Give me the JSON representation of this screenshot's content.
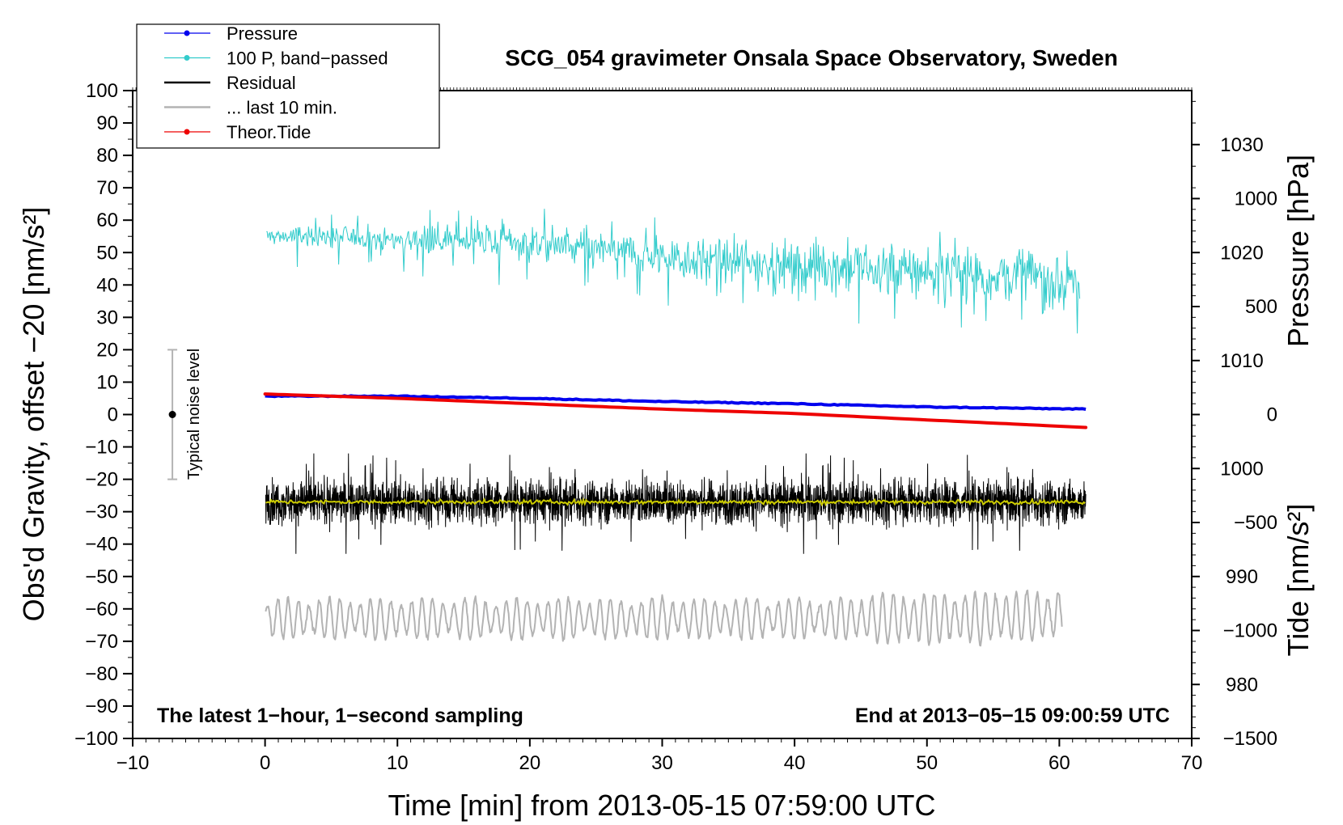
{
  "chart_data": {
    "type": "line",
    "title": "SCG_054 gravimeter Onsala Space Observatory, Sweden",
    "xlabel": "Time [min] from 2013-05-15 07:59:00 UTC",
    "ylabel_left": "Obs'd Gravity, offset −20 [nm/s²]",
    "ylabel_right_top": "Pressure [hPa]",
    "ylabel_right_bottom": "Tide [nm/s²]",
    "xlim": [
      -10,
      70
    ],
    "ylim": [
      -100,
      100
    ],
    "pressure_lim": [
      975,
      1035
    ],
    "tide_lim": [
      -1500,
      1500
    ],
    "x_ticks": [
      -10,
      0,
      10,
      20,
      30,
      40,
      50,
      60,
      70
    ],
    "y_ticks": [
      100,
      90,
      80,
      70,
      60,
      50,
      40,
      30,
      20,
      10,
      0,
      -10,
      -20,
      -30,
      -40,
      -50,
      -60,
      -70,
      -80,
      -90,
      -100
    ],
    "pressure_ticks": [
      1030,
      1020,
      1010,
      1000,
      990,
      980
    ],
    "tide_ticks": [
      1000,
      500,
      0,
      -500,
      -1000,
      -1500
    ],
    "x_tick_labels": [
      "−10",
      "0",
      "10",
      "20",
      "30",
      "40",
      "50",
      "60",
      "70"
    ],
    "y_tick_labels": [
      "100",
      "90",
      "80",
      "70",
      "60",
      "50",
      "40",
      "30",
      "20",
      "10",
      "0",
      "−10",
      "−20",
      "−30",
      "−40",
      "−50",
      "−60",
      "−70",
      "−80",
      "−90",
      "−100"
    ],
    "pressure_tick_labels": [
      "1030",
      "1020",
      "1010",
      "1000",
      "990",
      "980"
    ],
    "tide_tick_labels": [
      "1000",
      "500",
      "0",
      "−500",
      "−1000",
      "−1500"
    ],
    "legend": [
      {
        "label": "Pressure",
        "color": "#0000ee",
        "marker": "dot"
      },
      {
        "label": "100 P, band−passed",
        "color": "#33cccc",
        "marker": "dot"
      },
      {
        "label": "Residual",
        "color": "#000000",
        "marker": "none"
      },
      {
        "label": "... last 10 min.",
        "color": "#b3b3b3",
        "marker": "none"
      },
      {
        "label": "Theor.Tide",
        "color": "#ee0000",
        "marker": "dot"
      }
    ],
    "annotations": {
      "bottom_left": "The latest 1−hour, 1−second sampling",
      "bottom_right": "End at 2013−05−15 09:00:59 UTC",
      "noise_label": "Typical noise level"
    },
    "noise_bar": {
      "x": -7,
      "center": 0,
      "low": -20,
      "high": 20
    },
    "series": [
      {
        "name": "Pressure",
        "axis": "pressure",
        "color": "#0000ee",
        "x": [
          0,
          10,
          20,
          30,
          40,
          50,
          62
        ],
        "values": [
          1006.7,
          1006.7,
          1006.5,
          1006.2,
          1006.0,
          1005.7,
          1005.5
        ]
      },
      {
        "name": "100 P, band-passed",
        "axis": "left",
        "color": "#33cccc",
        "x": [
          0,
          5,
          10,
          15,
          20,
          25,
          30,
          35,
          40,
          45,
          50,
          55,
          60,
          61.5
        ],
        "values": [
          55,
          55,
          54,
          54,
          53,
          51,
          49,
          47,
          46,
          45,
          44,
          43,
          42,
          41
        ]
      },
      {
        "name": "Residual",
        "axis": "left",
        "color": "#000000",
        "x": [
          0,
          62
        ],
        "values": [
          -27,
          -27
        ]
      },
      {
        "name": "Residual (smoothed)",
        "axis": "left",
        "color": "#cccc00",
        "x": [
          0,
          62
        ],
        "values": [
          -27,
          -27
        ]
      },
      {
        "name": "Theor.Tide",
        "axis": "tide",
        "color": "#ee0000",
        "x": [
          0,
          10,
          20,
          30,
          40,
          50,
          62
        ],
        "values": [
          95,
          75,
          50,
          25,
          5,
          -25,
          -60
        ]
      },
      {
        "name": "... last 10 min.",
        "axis": "left",
        "color": "#b3b3b3",
        "x": [
          0,
          10,
          20,
          30,
          40,
          50,
          60
        ],
        "values": [
          -63,
          -63,
          -63,
          -63,
          -63,
          -63,
          -62
        ]
      }
    ]
  }
}
